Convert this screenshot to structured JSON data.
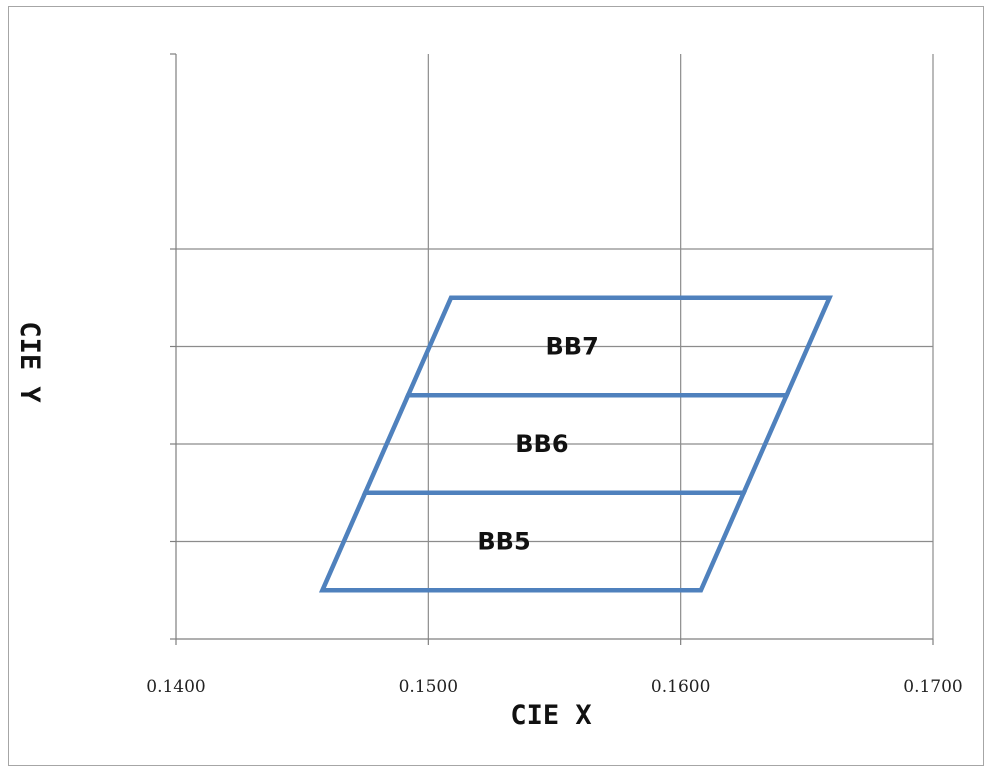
{
  "chart_data": {
    "type": "line",
    "title": "",
    "xlabel": "CIE X",
    "ylabel": "CIE Y",
    "xlim": [
      0.14,
      0.17
    ],
    "ylim": [
      0,
      6
    ],
    "x_ticks": [
      0.14,
      0.15,
      0.16,
      0.17
    ],
    "x_tick_labels": [
      "0.1400",
      "0.1500",
      "0.1600",
      "0.1700"
    ],
    "y_ticks": [
      1,
      2,
      3,
      4
    ],
    "grid": true,
    "line_color": "#4f81bd",
    "regions": [
      {
        "name": "BB5",
        "label_at": [
          0.153,
          1.0
        ],
        "polygon": [
          [
            0.1458,
            0.5
          ],
          [
            0.1608,
            0.5
          ],
          [
            0.1625,
            1.5
          ],
          [
            0.1475,
            1.5
          ]
        ]
      },
      {
        "name": "BB6",
        "label_at": [
          0.1545,
          2.0
        ],
        "polygon": [
          [
            0.1475,
            1.5
          ],
          [
            0.1625,
            1.5
          ],
          [
            0.1642,
            2.5
          ],
          [
            0.1492,
            2.5
          ]
        ]
      },
      {
        "name": "BB7",
        "label_at": [
          0.1557,
          3.0
        ],
        "polygon": [
          [
            0.1492,
            2.5
          ],
          [
            0.1642,
            2.5
          ],
          [
            0.1659,
            3.5
          ],
          [
            0.1509,
            3.5
          ]
        ]
      }
    ]
  }
}
